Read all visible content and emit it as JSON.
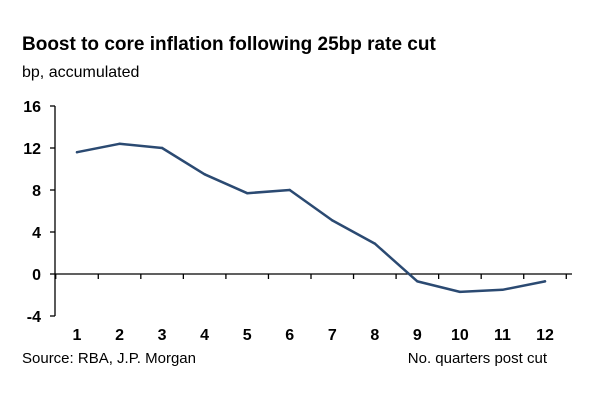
{
  "chart_data": {
    "type": "line",
    "title": "Boost to core inflation following 25bp rate cut",
    "ylabel": "bp, accumulated",
    "xlabel": "No. quarters post cut",
    "source": "Source: RBA, J.P. Morgan",
    "x": [
      1,
      2,
      3,
      4,
      5,
      6,
      7,
      8,
      9,
      10,
      11,
      12
    ],
    "y_ticks": [
      16,
      12,
      8,
      4,
      0,
      -4
    ],
    "ylim": [
      -4,
      16
    ],
    "grid": false,
    "series": [
      {
        "values": [
          11.6,
          12.4,
          12.0,
          9.5,
          7.7,
          8.0,
          5.1,
          2.9,
          -0.7,
          -1.7,
          -1.5,
          -0.7
        ]
      }
    ],
    "line_color": "#2b4a72"
  }
}
